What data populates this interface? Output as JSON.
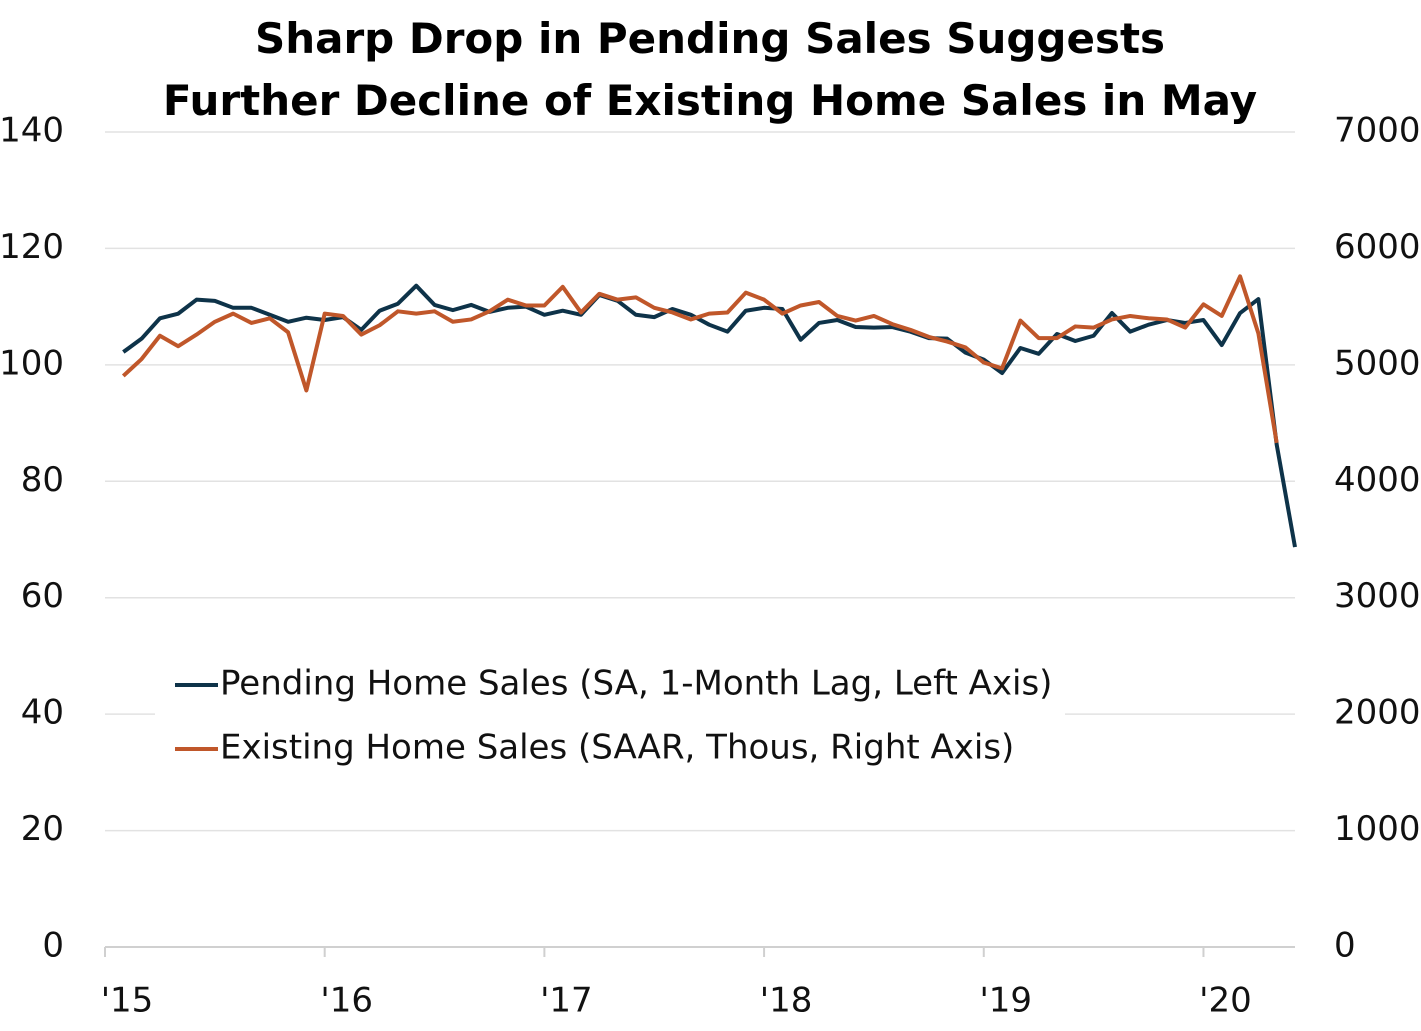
{
  "chart_data": {
    "type": "line",
    "title": "Sharp Drop in Pending Sales Suggests Further Decline of Existing Home Sales in May",
    "x": [
      1,
      2,
      3,
      4,
      5,
      6,
      7,
      8,
      9,
      10,
      11,
      12,
      13,
      14,
      15,
      16,
      17,
      18,
      19,
      20,
      21,
      22,
      23,
      24,
      25,
      26,
      27,
      28,
      29,
      30,
      31,
      32,
      33,
      34,
      35,
      36,
      37,
      38,
      39,
      40,
      41,
      42,
      43,
      44,
      45,
      46,
      47,
      48,
      49,
      50,
      51,
      52,
      53,
      54,
      55,
      56,
      57,
      58,
      59,
      60,
      61,
      62,
      63,
      64,
      65
    ],
    "xlim": [
      0,
      65
    ],
    "xticks": [
      {
        "value": 0,
        "label": "'15"
      },
      {
        "value": 12,
        "label": "'16"
      },
      {
        "value": 24,
        "label": "'17"
      },
      {
        "value": 36,
        "label": "'18"
      },
      {
        "value": 48,
        "label": "'19"
      },
      {
        "value": 60,
        "label": "'20"
      }
    ],
    "ylim": [
      0,
      140
    ],
    "yticks": [
      0,
      20,
      40,
      60,
      80,
      100,
      120,
      140
    ],
    "y2lim": [
      0,
      7000
    ],
    "y2ticks": [
      0,
      1000,
      2000,
      3000,
      4000,
      5000,
      6000,
      7000
    ],
    "grid": true,
    "legend": "left",
    "series": [
      {
        "name": "Pending Home Sales (SA, 1-Month Lag, Left Axis)",
        "color": "#0e3349",
        "axis": "y",
        "values": [
          102.2,
          104.5,
          108,
          108.8,
          111.2,
          111,
          109.8,
          109.8,
          108.6,
          107.4,
          108.1,
          107.7,
          108.2,
          106,
          109.3,
          110.5,
          113.6,
          110.3,
          109.4,
          110.3,
          109.1,
          109.8,
          110,
          108.6,
          109.3,
          108.6,
          112,
          111,
          108.6,
          108.2,
          109.6,
          108.6,
          106.9,
          105.7,
          109.3,
          109.8,
          109.6,
          104.3,
          107.2,
          107.7,
          106.5,
          106.4,
          106.5,
          105.7,
          104.6,
          104.5,
          102.1,
          100.9,
          98.6,
          102.9,
          101.9,
          105.3,
          104.1,
          105,
          108.9,
          105.7,
          106.9,
          107.7,
          107.2,
          107.7,
          103.4,
          108.9,
          111.3,
          86.3,
          68.7
        ]
      },
      {
        "name": "Existing Home Sales (SAAR, Thous, Right Axis)",
        "color": "#c0572a",
        "axis": "y2",
        "values": [
          4905,
          5050,
          5250,
          5160,
          5260,
          5370,
          5440,
          5360,
          5400,
          5280,
          4780,
          5440,
          5420,
          5260,
          5340,
          5460,
          5440,
          5460,
          5370,
          5390,
          5460,
          5560,
          5510,
          5510,
          5670,
          5450,
          5610,
          5560,
          5580,
          5490,
          5450,
          5390,
          5440,
          5450,
          5620,
          5560,
          5440,
          5510,
          5540,
          5420,
          5380,
          5420,
          5350,
          5300,
          5240,
          5200,
          5150,
          5020,
          4970,
          5380,
          5230,
          5230,
          5330,
          5320,
          5390,
          5420,
          5400,
          5390,
          5320,
          5520,
          5420,
          5760,
          5270,
          4330,
          null
        ]
      }
    ]
  }
}
